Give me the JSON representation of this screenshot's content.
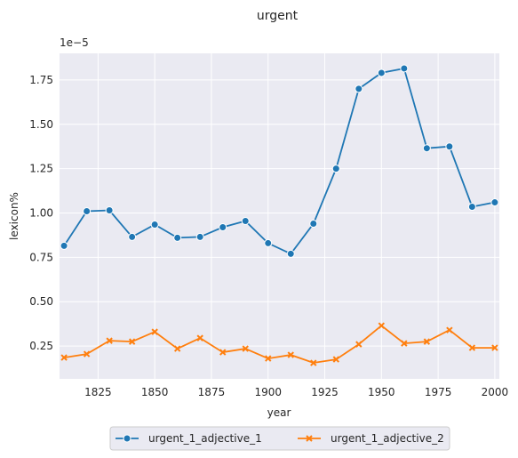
{
  "chart_data": {
    "type": "line",
    "title": "urgent",
    "xlabel": "year",
    "ylabel": "lexicon%",
    "y_offset_text": "1e−5",
    "xlim": [
      1808,
      2002
    ],
    "ylim": [
      0.065,
      1.9
    ],
    "x_ticks": [
      1825,
      1850,
      1875,
      1900,
      1925,
      1950,
      1975,
      2000
    ],
    "y_ticks": [
      0.25,
      0.5,
      0.75,
      1.0,
      1.25,
      1.5,
      1.75
    ],
    "y_tick_labels": [
      "0.25",
      "0.50",
      "0.75",
      "1.00",
      "1.25",
      "1.50",
      "1.75"
    ],
    "grid": true,
    "legend_placement": "bottom-center",
    "x": [
      1810,
      1820,
      1830,
      1840,
      1850,
      1860,
      1870,
      1880,
      1890,
      1900,
      1910,
      1920,
      1930,
      1940,
      1950,
      1960,
      1970,
      1980,
      1990,
      2000
    ],
    "series": [
      {
        "name": "urgent_1_adjective_1",
        "color": "#1f77b4",
        "marker": "circle",
        "values": [
          0.815,
          1.01,
          1.015,
          0.865,
          0.935,
          0.86,
          0.865,
          0.92,
          0.955,
          0.83,
          0.77,
          0.94,
          1.25,
          1.7,
          1.79,
          1.815,
          1.365,
          1.375,
          1.035,
          1.06
        ]
      },
      {
        "name": "urgent_1_adjective_2",
        "color": "#ff7f0e",
        "marker": "x",
        "values": [
          0.185,
          0.205,
          0.28,
          0.275,
          0.33,
          0.235,
          0.295,
          0.215,
          0.235,
          0.18,
          0.2,
          0.155,
          0.175,
          0.26,
          0.365,
          0.265,
          0.275,
          0.34,
          0.24,
          0.24
        ]
      }
    ]
  }
}
